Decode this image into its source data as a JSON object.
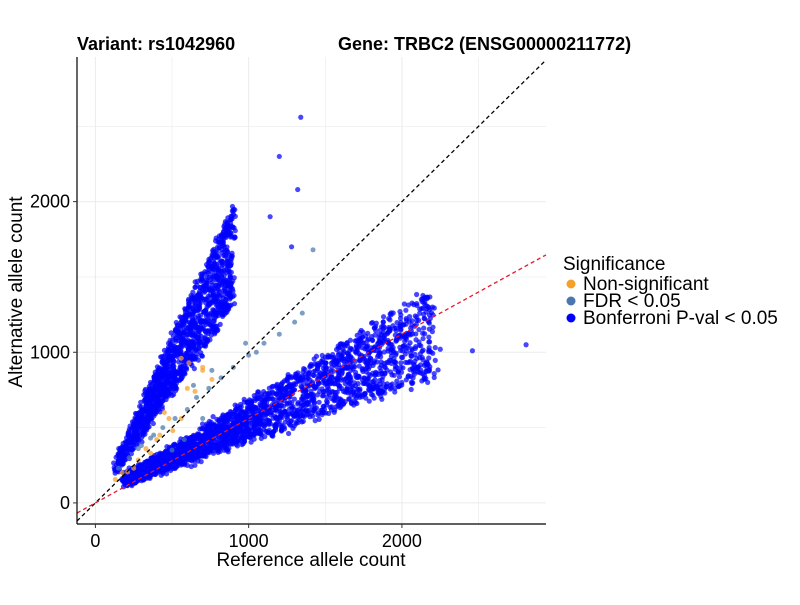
{
  "chart_data": {
    "type": "scatter",
    "title_left": "Variant: rs1042960",
    "title_right": "Gene: TRBC2 (ENSG00000211772)",
    "xlabel": "Reference allele count",
    "ylabel": "Alternative allele count",
    "xlim": [
      -120,
      2940
    ],
    "ylim": [
      -140,
      2960
    ],
    "xticks": [
      0,
      1000,
      2000
    ],
    "yticks": [
      0,
      1000,
      2000
    ],
    "grid": true,
    "legend": {
      "title": "Significance",
      "position": "right",
      "entries": [
        {
          "label": "Non-significant",
          "color": "#F5A02A"
        },
        {
          "label": "FDR < 0.05",
          "color": "#4A77AE"
        },
        {
          "label": "Bonferroni P-val < 0.05",
          "color": "#0000FF"
        }
      ]
    },
    "reference_lines": [
      {
        "name": "identity",
        "slope": 1.0,
        "intercept": 0,
        "color": "#000000",
        "dash": true
      },
      {
        "name": "expected-ratio",
        "slope": 0.56,
        "intercept": 0,
        "color": "#E8192C",
        "dash": true
      }
    ],
    "series": [
      {
        "color": "#F5A02A",
        "x": [
          130,
          175,
          210,
          280,
          330,
          400,
          450,
          505,
          560,
          600,
          650,
          700,
          610,
          560,
          480,
          420,
          700,
          760,
          250,
          360
        ],
        "y": [
          155,
          200,
          205,
          285,
          360,
          420,
          600,
          480,
          560,
          760,
          740,
          880,
          930,
          960,
          560,
          450,
          900,
          820,
          230,
          330
        ]
      },
      {
        "color": "#4A77AE",
        "x": [
          150,
          220,
          300,
          380,
          440,
          520,
          600,
          660,
          740,
          820,
          900,
          1000,
          1100,
          1200,
          1300,
          1350,
          1420,
          700,
          580,
          500,
          360,
          280,
          640,
          760,
          980,
          1050
        ],
        "y": [
          230,
          300,
          380,
          450,
          500,
          560,
          620,
          700,
          760,
          830,
          900,
          980,
          1060,
          1120,
          1200,
          1260,
          1680,
          560,
          420,
          350,
          430,
          360,
          780,
          880,
          1060,
          1000
        ],
        "radius": 2.4
      },
      {
        "color": "#0000FF",
        "highlights": {
          "x": [
            1340,
            1200,
            1320,
            1140,
            1280,
            2810,
            2460,
            2250
          ],
          "y": [
            2560,
            2300,
            2080,
            1900,
            1700,
            1050,
            1010,
            1020
          ]
        },
        "upper_cluster": {
          "x_range": [
            140,
            900
          ],
          "slope_range": [
            1.45,
            2.2
          ],
          "jitter": 90
        },
        "lower_cluster": {
          "x_range": [
            200,
            2200
          ],
          "slope_range": [
            0.35,
            0.62
          ],
          "jitter": 60
        }
      }
    ]
  }
}
